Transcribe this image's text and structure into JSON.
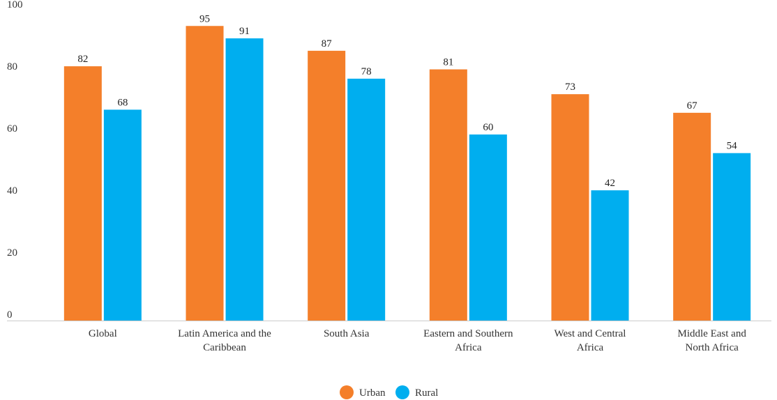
{
  "chart_data": {
    "type": "bar",
    "categories": [
      [
        "Global"
      ],
      [
        "Latin America and the",
        "Caribbean"
      ],
      [
        "South Asia"
      ],
      [
        "Eastern and Southern",
        "Africa"
      ],
      [
        "West and Central",
        "Africa"
      ],
      [
        "Middle East and",
        "North Africa"
      ]
    ],
    "series": [
      {
        "name": "Urban",
        "color": "#f47f2a",
        "values": [
          82,
          95,
          87,
          81,
          73,
          67
        ]
      },
      {
        "name": "Rural",
        "color": "#00aeef",
        "values": [
          68,
          91,
          78,
          60,
          42,
          54
        ]
      }
    ],
    "yticks": [
      0,
      20,
      40,
      60,
      80,
      100
    ],
    "ylim": [
      0,
      100
    ],
    "grid": false,
    "legend_position": "bottom-center"
  }
}
